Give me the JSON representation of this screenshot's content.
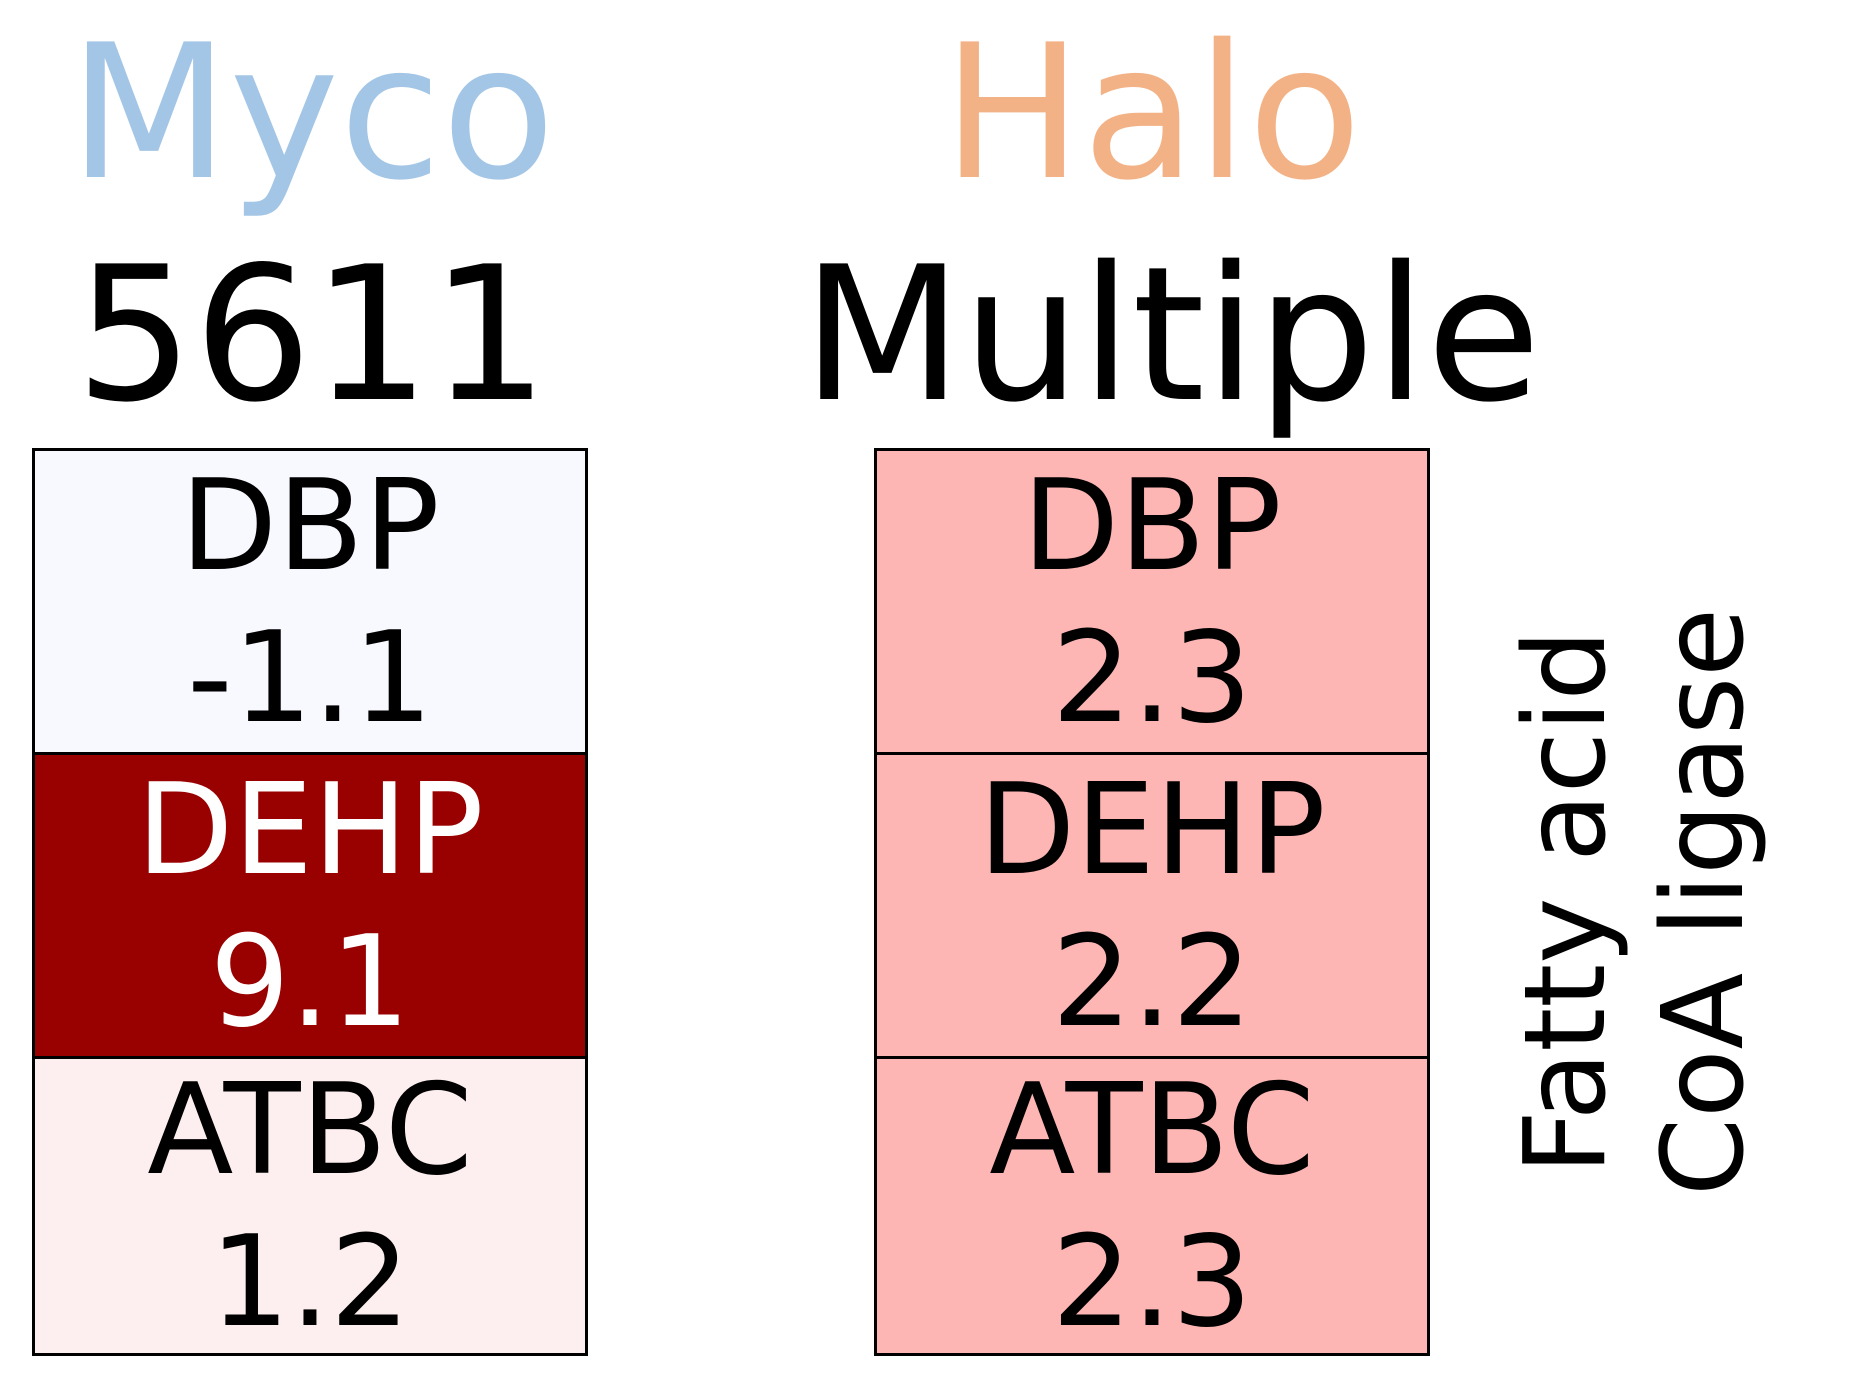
{
  "chart_data": {
    "type": "heatmap",
    "columns": [
      {
        "organism": "Myco",
        "organism_color": "#a4c6e6",
        "gene_id": "5611",
        "cells": [
          {
            "compound": "DBP",
            "value": "-1.1",
            "bg": "#f8f8ff",
            "fg": "#000000"
          },
          {
            "compound": "DEHP",
            "value": "9.1",
            "bg": "#990000",
            "fg": "#ffffff"
          },
          {
            "compound": "ATBC",
            "value": "1.2",
            "bg": "#fdefef",
            "fg": "#000000"
          }
        ]
      },
      {
        "organism": "Halo",
        "organism_color": "#f3b286",
        "gene_id": "Multiple",
        "cells": [
          {
            "compound": "DBP",
            "value": "2.3",
            "bg": "#fdb6b4",
            "fg": "#000000"
          },
          {
            "compound": "DEHP",
            "value": "2.2",
            "bg": "#fdb6b4",
            "fg": "#000000"
          },
          {
            "compound": "ATBC",
            "value": "2.3",
            "bg": "#fdb6b4",
            "fg": "#000000"
          }
        ]
      }
    ],
    "row_label": [
      "Fatty acid",
      "CoA ligase"
    ]
  }
}
